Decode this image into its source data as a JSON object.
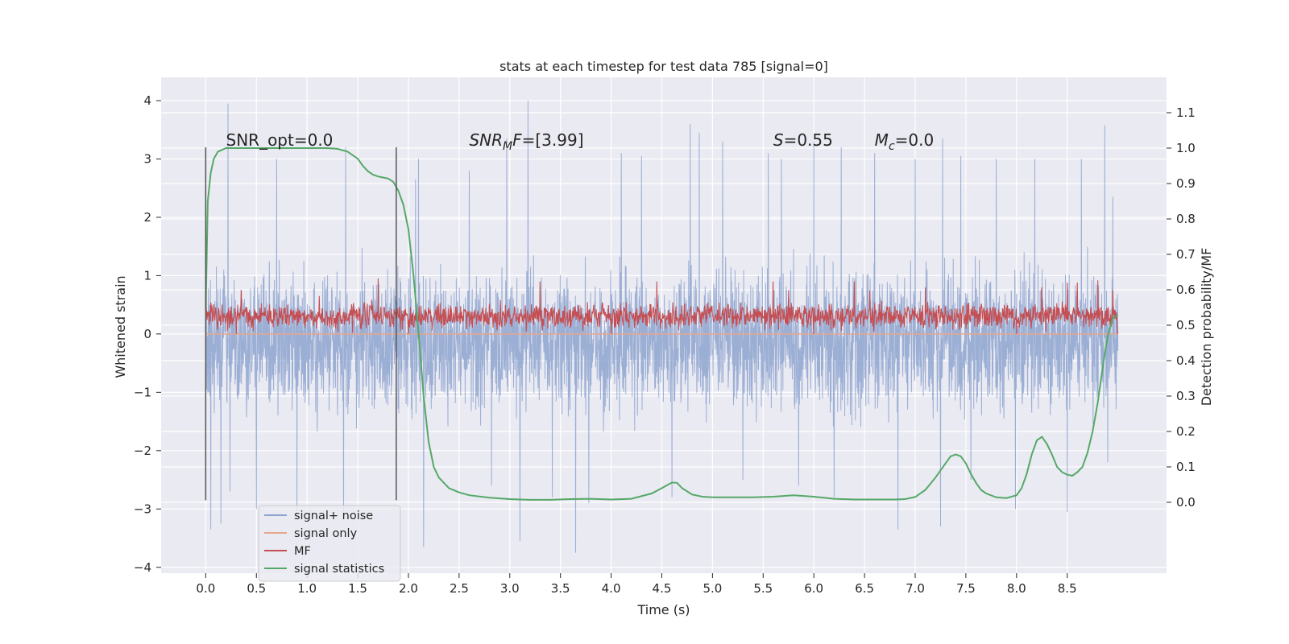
{
  "chart_data": {
    "type": "line",
    "title": "stats at each timestep for test data 785 [signal=0]",
    "xlabel": "Time (s)",
    "ylabel": "Whitened strain",
    "ylabel_right": "Detection probability/MF",
    "xlim": [
      -0.44,
      9.48
    ],
    "ylim": [
      -4.1,
      4.4
    ],
    "ylim_right": [
      -0.2,
      1.2
    ],
    "xticks": [
      0.0,
      0.5,
      1.0,
      1.5,
      2.0,
      2.5,
      3.0,
      3.5,
      4.0,
      4.5,
      5.0,
      5.5,
      6.0,
      6.5,
      7.0,
      7.5,
      8.0,
      8.5
    ],
    "xtick_labels": [
      "0.0",
      "0.5",
      "1.0",
      "1.5",
      "2.0",
      "2.5",
      "3.0",
      "3.5",
      "4.0",
      "4.5",
      "5.0",
      "5.5",
      "6.0",
      "6.5",
      "7.0",
      "7.5",
      "8.0",
      "8.5"
    ],
    "yticks": [
      -4,
      -3,
      -2,
      -1,
      0,
      1,
      2,
      3,
      4
    ],
    "ytick_labels": [
      "−4",
      "−3",
      "−2",
      "−1",
      "0",
      "1",
      "2",
      "3",
      "4"
    ],
    "yticks_right": [
      0.0,
      0.1,
      0.2,
      0.3,
      0.4,
      0.5,
      0.6,
      0.7,
      0.8,
      0.9,
      1.0,
      1.1
    ],
    "ytick_labels_right": [
      "0.0",
      "0.1",
      "0.2",
      "0.3",
      "0.4",
      "0.5",
      "0.6",
      "0.7",
      "0.8",
      "0.9",
      "1.0",
      "1.1"
    ],
    "grid": true,
    "legend_position": "lower-left",
    "vlines": [
      0.0,
      1.88
    ],
    "vline_range": [
      -2.85,
      3.2
    ],
    "annotations": [
      {
        "text": "SNR_opt=0.0",
        "x": 0.2,
        "y": 3.2,
        "italic": false
      },
      {
        "text": "SNRₘF=[3.99]",
        "x": 2.6,
        "y": 3.2,
        "italic": true,
        "label_main": "SNR",
        "label_sub": "M",
        "label_rest": "F",
        "label_value": "=[3.99]"
      },
      {
        "text": "S=0.55",
        "x": 5.6,
        "y": 3.2,
        "italic": true,
        "label_main": "S",
        "label_sub": "",
        "label_rest": "",
        "label_value": "=0.55"
      },
      {
        "text": "M_c=0.0",
        "x": 6.6,
        "y": 3.2,
        "italic": true,
        "label_main": "M",
        "label_sub": "c",
        "label_rest": "",
        "label_value": "=0.0"
      }
    ],
    "series": [
      {
        "name": "signal+ noise",
        "color": "#8da3cf",
        "axis": "left",
        "kind": "noise",
        "x_start": 0.0,
        "x_end": 9.0,
        "typical_range": [
          -1.65,
          1.4
        ],
        "peaks_positive": [
          [
            0.22,
            3.95
          ],
          [
            0.7,
            3.0
          ],
          [
            1.38,
            3.2
          ],
          [
            2.07,
            2.65
          ],
          [
            2.1,
            3.0
          ],
          [
            2.6,
            2.8
          ],
          [
            2.97,
            3.35
          ],
          [
            3.18,
            4.0
          ],
          [
            3.65,
            3.22
          ],
          [
            4.1,
            3.1
          ],
          [
            4.3,
            3.05
          ],
          [
            4.6,
            3.2
          ],
          [
            4.78,
            3.6
          ],
          [
            4.87,
            3.45
          ],
          [
            5.1,
            3.3
          ],
          [
            5.55,
            3.1
          ],
          [
            5.68,
            3.0
          ],
          [
            6.0,
            3.3
          ],
          [
            6.27,
            3.2
          ],
          [
            6.6,
            3.1
          ],
          [
            7.0,
            3.0
          ],
          [
            7.27,
            3.35
          ],
          [
            7.45,
            3.05
          ],
          [
            7.8,
            3.0
          ],
          [
            8.18,
            3.0
          ],
          [
            8.5,
            3.05
          ],
          [
            8.64,
            3.0
          ],
          [
            8.87,
            3.58
          ],
          [
            8.95,
            2.35
          ]
        ],
        "peaks_negative": [
          [
            0.05,
            -3.35
          ],
          [
            0.15,
            -3.25
          ],
          [
            0.24,
            -2.7
          ],
          [
            0.5,
            -3.0
          ],
          [
            0.9,
            -3.2
          ],
          [
            1.36,
            -3.1
          ],
          [
            2.15,
            -3.65
          ],
          [
            2.82,
            -2.6
          ],
          [
            3.1,
            -3.55
          ],
          [
            3.42,
            -2.8
          ],
          [
            3.65,
            -3.75
          ],
          [
            3.78,
            -2.9
          ],
          [
            4.6,
            -2.8
          ],
          [
            5.3,
            -2.5
          ],
          [
            5.85,
            -2.6
          ],
          [
            6.2,
            -2.8
          ],
          [
            6.83,
            -3.35
          ],
          [
            7.25,
            -3.3
          ],
          [
            7.55,
            -2.5
          ],
          [
            7.99,
            -3.0
          ],
          [
            8.5,
            -3.05
          ],
          [
            8.9,
            -2.2
          ]
        ]
      },
      {
        "name": "signal only",
        "color": "#e8a68c",
        "axis": "left",
        "kind": "line",
        "x": [
          0.0,
          9.0
        ],
        "y": [
          0.0,
          0.0
        ]
      },
      {
        "name": "MF",
        "color": "#c44e52",
        "axis": "left",
        "kind": "noise",
        "x_start": 0.0,
        "x_end": 9.0,
        "typical_range": [
          0.03,
          0.58
        ],
        "peaks_positive": [
          [
            0.35,
            0.75
          ],
          [
            1.12,
            0.65
          ],
          [
            1.7,
            0.95
          ],
          [
            3.3,
            0.9
          ],
          [
            4.45,
            0.9
          ],
          [
            5.6,
            0.9
          ],
          [
            5.75,
            0.75
          ],
          [
            6.4,
            0.9
          ],
          [
            6.55,
            0.75
          ],
          [
            7.1,
            0.8
          ],
          [
            8.25,
            0.8
          ],
          [
            8.5,
            0.88
          ],
          [
            8.6,
            0.88
          ],
          [
            8.8,
            0.92
          ],
          [
            8.95,
            0.75
          ]
        ],
        "peaks_negative": [
          [
            0.3,
            0.0
          ],
          [
            2.0,
            0.0
          ],
          [
            4.0,
            0.0
          ],
          [
            6.0,
            0.0
          ],
          [
            8.0,
            0.0
          ],
          [
            9.0,
            0.0
          ]
        ]
      },
      {
        "name": "signal statistics",
        "color": "#55a868",
        "axis": "right",
        "kind": "line",
        "x": [
          0.0,
          0.02,
          0.05,
          0.08,
          0.12,
          0.16,
          0.2,
          0.25,
          0.3,
          0.4,
          0.6,
          0.8,
          1.0,
          1.2,
          1.3,
          1.4,
          1.5,
          1.55,
          1.6,
          1.65,
          1.7,
          1.75,
          1.8,
          1.85,
          1.9,
          1.95,
          2.0,
          2.05,
          2.1,
          2.15,
          2.2,
          2.25,
          2.3,
          2.4,
          2.5,
          2.6,
          2.8,
          3.0,
          3.2,
          3.4,
          3.6,
          3.8,
          4.0,
          4.2,
          4.4,
          4.5,
          4.6,
          4.65,
          4.7,
          4.8,
          4.9,
          5.0,
          5.2,
          5.4,
          5.6,
          5.8,
          6.0,
          6.2,
          6.4,
          6.6,
          6.8,
          6.9,
          7.0,
          7.1,
          7.2,
          7.3,
          7.35,
          7.4,
          7.45,
          7.5,
          7.55,
          7.6,
          7.65,
          7.7,
          7.8,
          7.9,
          8.0,
          8.05,
          8.1,
          8.15,
          8.2,
          8.25,
          8.3,
          8.35,
          8.4,
          8.45,
          8.5,
          8.55,
          8.6,
          8.65,
          8.7,
          8.75,
          8.8,
          8.85,
          8.9,
          8.95,
          9.0
        ],
        "y": [
          0.55,
          0.85,
          0.93,
          0.97,
          0.99,
          0.995,
          1.0,
          1.0,
          1.0,
          1.0,
          1.0,
          1.0,
          1.0,
          1.0,
          0.998,
          0.99,
          0.97,
          0.95,
          0.935,
          0.925,
          0.92,
          0.917,
          0.914,
          0.905,
          0.88,
          0.84,
          0.77,
          0.64,
          0.48,
          0.3,
          0.17,
          0.1,
          0.07,
          0.04,
          0.028,
          0.02,
          0.013,
          0.009,
          0.007,
          0.007,
          0.009,
          0.01,
          0.008,
          0.01,
          0.025,
          0.04,
          0.056,
          0.055,
          0.04,
          0.022,
          0.016,
          0.014,
          0.014,
          0.014,
          0.016,
          0.02,
          0.016,
          0.01,
          0.008,
          0.008,
          0.008,
          0.009,
          0.015,
          0.035,
          0.07,
          0.11,
          0.13,
          0.135,
          0.13,
          0.11,
          0.08,
          0.055,
          0.035,
          0.025,
          0.014,
          0.012,
          0.02,
          0.04,
          0.08,
          0.135,
          0.175,
          0.185,
          0.165,
          0.135,
          0.1,
          0.085,
          0.078,
          0.075,
          0.085,
          0.1,
          0.14,
          0.2,
          0.28,
          0.38,
          0.47,
          0.52,
          0.53
        ]
      }
    ]
  }
}
